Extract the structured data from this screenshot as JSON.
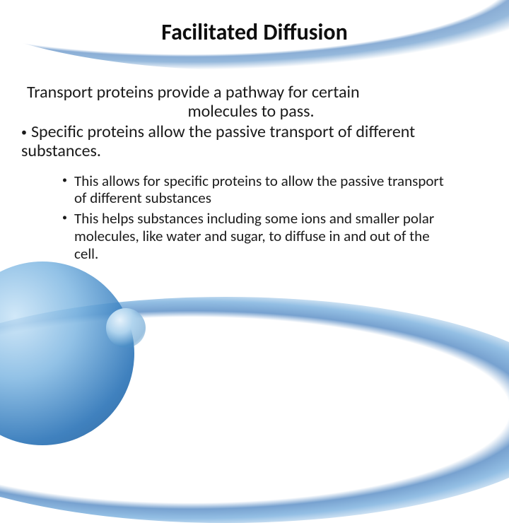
{
  "slide": {
    "title": "Facilitated Diffusion",
    "intro_line1": "Transport proteins provide a pathway for certain",
    "intro_line2": "molecules to pass.",
    "bullet1": "Specific proteins allow the passive transport of different substances.",
    "sub_bullets": {
      "item1": "This allows for specific proteins to allow the passive transport of different substances",
      "item2": "This helps substances including some ions and smaller polar molecules, like water and sugar, to diffuse in and out of the cell."
    }
  },
  "theme": {
    "text_color": "#1a1a1a",
    "accent_color": "#1e6bb3",
    "background_color": "#ffffff"
  }
}
